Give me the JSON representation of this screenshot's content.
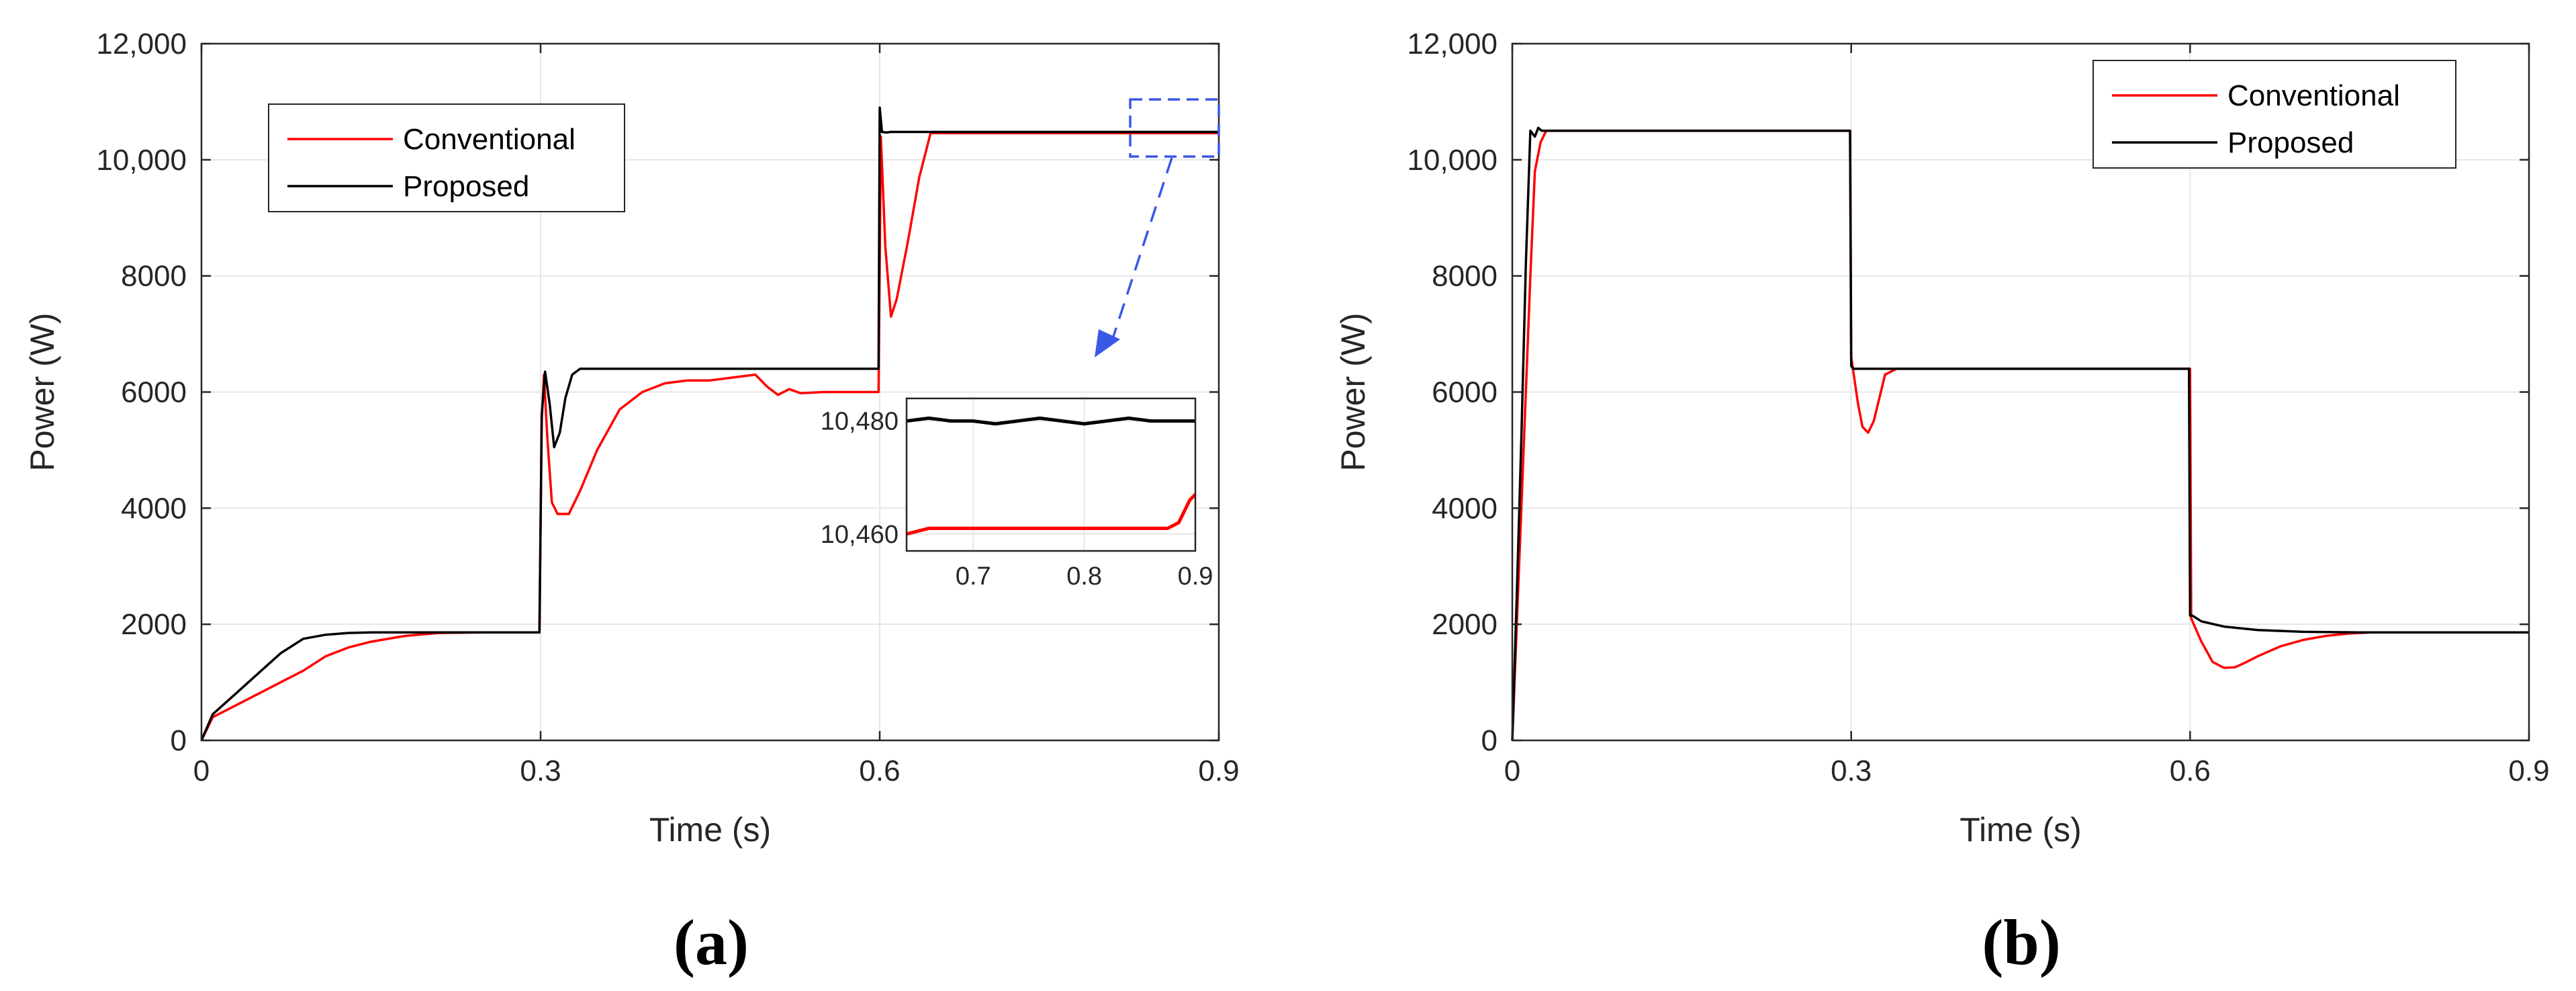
{
  "chart_data": [
    {
      "panel_label": "(a)",
      "type": "line",
      "xlabel": "Time (s)",
      "ylabel": "Power (W)",
      "xlim": [
        0,
        0.9
      ],
      "ylim": [
        0,
        12000
      ],
      "xticks": [
        "0",
        "0.3",
        "0.6",
        "0.9"
      ],
      "yticks": [
        "0",
        "2000",
        "4000",
        "6000",
        "8000",
        "10,000",
        "12,000"
      ],
      "grid": true,
      "legend_position": "upper-left",
      "series": [
        {
          "name": "Conventional",
          "color": "#ff0000",
          "x": [
            0,
            0.01,
            0.03,
            0.05,
            0.07,
            0.09,
            0.11,
            0.13,
            0.15,
            0.18,
            0.21,
            0.25,
            0.299,
            0.301,
            0.303,
            0.306,
            0.31,
            0.315,
            0.325,
            0.335,
            0.35,
            0.37,
            0.39,
            0.41,
            0.43,
            0.45,
            0.47,
            0.49,
            0.5,
            0.51,
            0.52,
            0.53,
            0.55,
            0.57,
            0.599,
            0.601,
            0.605,
            0.61,
            0.615,
            0.625,
            0.635,
            0.645,
            0.66,
            0.7,
            0.8,
            0.9
          ],
          "y": [
            0,
            400,
            600,
            800,
            1000,
            1200,
            1450,
            1600,
            1700,
            1800,
            1850,
            1860,
            1860,
            5500,
            6300,
            5200,
            4100,
            3900,
            3900,
            4300,
            5000,
            5700,
            6000,
            6150,
            6200,
            6200,
            6250,
            6300,
            6100,
            5950,
            6050,
            5980,
            6000,
            6000,
            6000,
            10400,
            8500,
            7300,
            7600,
            8600,
            9700,
            10460,
            10460,
            10460,
            10460,
            10460
          ]
        },
        {
          "name": "Proposed",
          "color": "#000000",
          "x": [
            0,
            0.01,
            0.03,
            0.05,
            0.07,
            0.09,
            0.11,
            0.13,
            0.15,
            0.18,
            0.21,
            0.25,
            0.299,
            0.301,
            0.304,
            0.308,
            0.312,
            0.317,
            0.322,
            0.328,
            0.335,
            0.34,
            0.4,
            0.5,
            0.599,
            0.6,
            0.602,
            0.606,
            0.61,
            0.7,
            0.8,
            0.9
          ],
          "y": [
            0,
            450,
            800,
            1150,
            1500,
            1750,
            1820,
            1850,
            1860,
            1860,
            1860,
            1860,
            1860,
            5600,
            6350,
            5800,
            5050,
            5300,
            5900,
            6300,
            6400,
            6400,
            6400,
            6400,
            6400,
            10900,
            10480,
            10470,
            10480,
            10480,
            10480,
            10480
          ]
        }
      ],
      "inset": {
        "xlim": [
          0.64,
          0.9
        ],
        "ylim": [
          10457,
          10484
        ],
        "xticks": [
          "0.7",
          "0.8",
          "0.9"
        ],
        "yticks": [
          "10,460",
          "10,480"
        ],
        "series": [
          {
            "name": "Proposed",
            "color": "#000000",
            "x": [
              0.64,
              0.66,
              0.68,
              0.7,
              0.72,
              0.74,
              0.76,
              0.78,
              0.8,
              0.82,
              0.84,
              0.86,
              0.88,
              0.9
            ],
            "y": [
              10480,
              10480.5,
              10480,
              10480,
              10479.5,
              10480,
              10480.5,
              10480,
              10479.5,
              10480,
              10480.5,
              10480,
              10480,
              10480
            ]
          },
          {
            "name": "Conventional",
            "color": "#ff0000",
            "x": [
              0.64,
              0.66,
              0.68,
              0.7,
              0.72,
              0.74,
              0.76,
              0.78,
              0.8,
              0.82,
              0.84,
              0.86,
              0.875,
              0.885,
              0.89,
              0.895,
              0.9
            ],
            "y": [
              10460,
              10461,
              10461,
              10461,
              10461,
              10461,
              10461,
              10461,
              10461,
              10461,
              10461,
              10461,
              10461,
              10462,
              10464,
              10466,
              10467
            ]
          }
        ]
      }
    },
    {
      "panel_label": "(b)",
      "type": "line",
      "xlabel": "Time (s)",
      "ylabel": "Power (W)",
      "xlim": [
        0,
        0.9
      ],
      "ylim": [
        0,
        12000
      ],
      "xticks": [
        "0",
        "0.3",
        "0.6",
        "0.9"
      ],
      "yticks": [
        "0",
        "2000",
        "4000",
        "6000",
        "8000",
        "10,000",
        "12,000"
      ],
      "grid": true,
      "legend_position": "upper-right",
      "series": [
        {
          "name": "Conventional",
          "color": "#ff0000",
          "x": [
            0,
            0.004,
            0.008,
            0.012,
            0.016,
            0.02,
            0.025,
            0.03,
            0.05,
            0.299,
            0.3,
            0.306,
            0.31,
            0.315,
            0.32,
            0.325,
            0.33,
            0.34,
            0.35,
            0.6,
            0.601,
            0.61,
            0.62,
            0.63,
            0.64,
            0.65,
            0.66,
            0.68,
            0.7,
            0.72,
            0.74,
            0.76,
            0.8,
            0.9
          ],
          "y": [
            0,
            2000,
            4000,
            6000,
            8000,
            9800,
            10300,
            10500,
            10500,
            10500,
            6600,
            5800,
            5400,
            5300,
            5500,
            5900,
            6300,
            6400,
            6400,
            6400,
            2100,
            1700,
            1350,
            1250,
            1260,
            1350,
            1450,
            1620,
            1730,
            1800,
            1840,
            1860,
            1860,
            1860
          ]
        },
        {
          "name": "Proposed",
          "color": "#000000",
          "x": [
            0,
            0.004,
            0.008,
            0.012,
            0.016,
            0.02,
            0.023,
            0.026,
            0.03,
            0.05,
            0.299,
            0.3,
            0.302,
            0.5,
            0.599,
            0.6,
            0.602,
            0.61,
            0.63,
            0.66,
            0.7,
            0.75,
            0.9
          ],
          "y": [
            0,
            2500,
            5200,
            8200,
            10500,
            10400,
            10550,
            10500,
            10500,
            10500,
            10500,
            6450,
            6400,
            6400,
            6400,
            2150,
            2150,
            2050,
            1960,
            1900,
            1870,
            1860,
            1860
          ]
        }
      ]
    }
  ]
}
